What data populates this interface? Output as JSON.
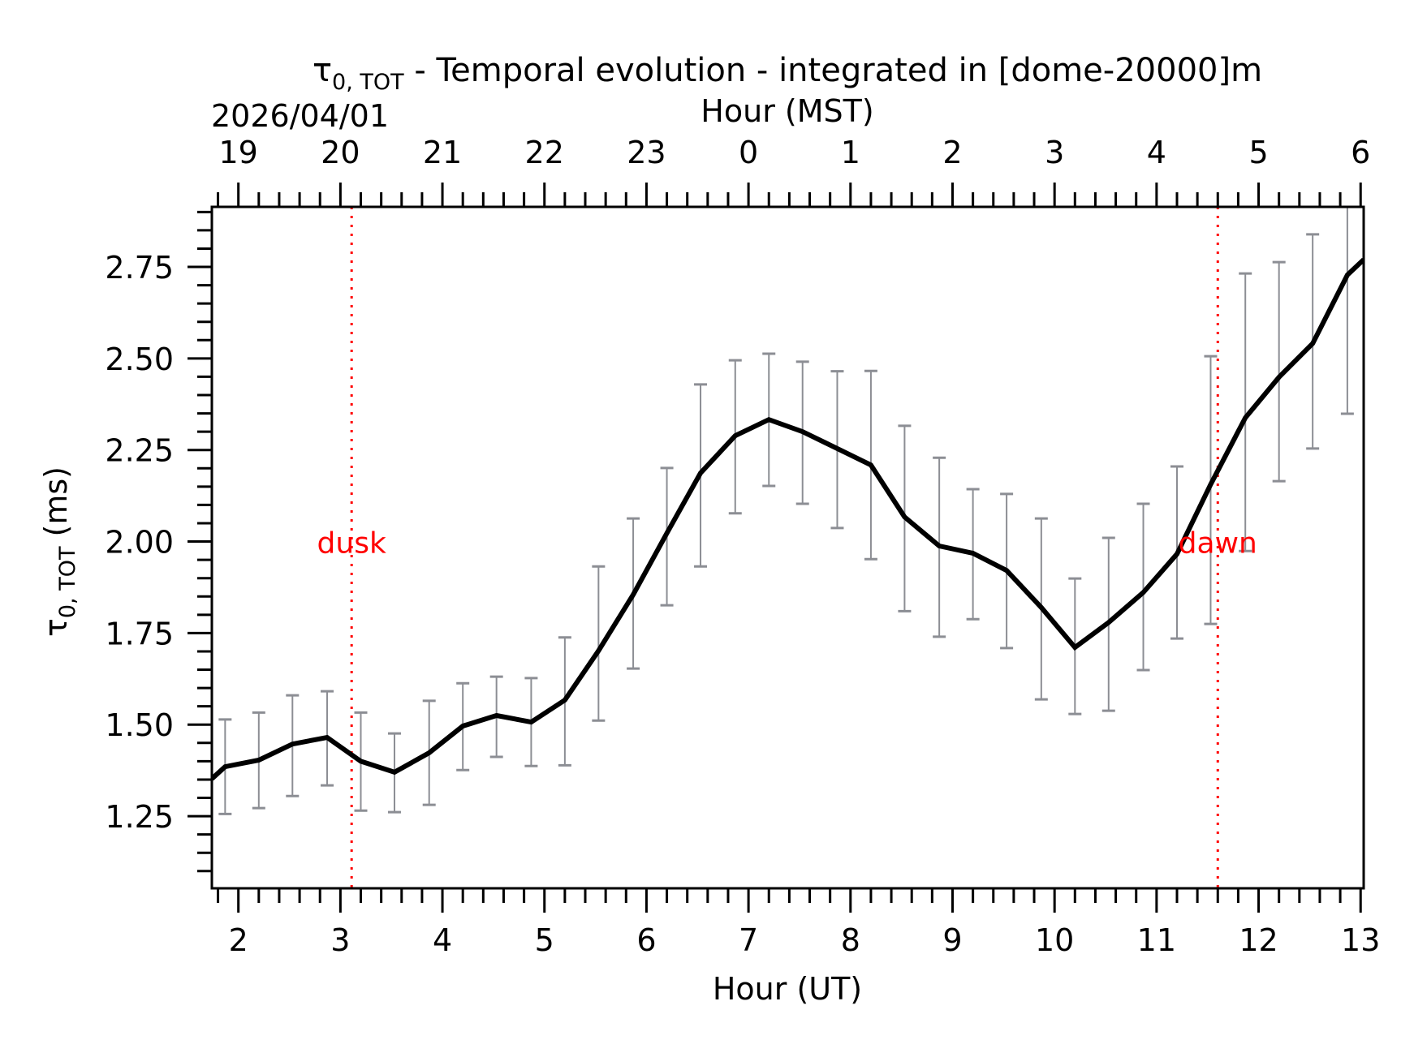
{
  "chart_data": {
    "type": "line",
    "title": {
      "symbol": "τ",
      "subscript": "0, TOT",
      "text": " - Temporal evolution - integrated in [dome-20000]m"
    },
    "date_label": "2026/04/01",
    "xlabel": "Hour (UT)",
    "xlabel_top": "Hour (MST)",
    "ylabel": {
      "symbol": "τ",
      "subscript": "0, TOT",
      "text": " (ms)"
    },
    "xlim": [
      1.74,
      13.03
    ],
    "ylim": [
      1.053,
      2.914
    ],
    "x_ticks": [
      2,
      3,
      4,
      5,
      6,
      7,
      8,
      9,
      10,
      11,
      12,
      13
    ],
    "x_tick_labels": [
      "2",
      "3",
      "4",
      "5",
      "6",
      "7",
      "8",
      "9",
      "10",
      "11",
      "12",
      "13"
    ],
    "x_minor_step": 0.2,
    "top_ticks_ut": [
      2,
      3,
      4,
      5,
      6,
      7,
      8,
      9,
      10,
      11,
      12,
      13
    ],
    "top_tick_labels": [
      "19",
      "20",
      "21",
      "22",
      "23",
      "0",
      "1",
      "2",
      "3",
      "4",
      "5",
      "6"
    ],
    "y_ticks": [
      1.25,
      1.5,
      1.75,
      2.0,
      2.25,
      2.5,
      2.75
    ],
    "y_tick_labels": [
      "1.25",
      "1.50",
      "1.75",
      "2.00",
      "2.25",
      "2.50",
      "2.75"
    ],
    "y_minor_step": 0.05,
    "grid": false,
    "series": [
      {
        "name": "tau0_tot",
        "color": "#000000",
        "x": [
          1.74,
          1.87,
          2.2,
          2.53,
          2.87,
          3.2,
          3.53,
          3.87,
          4.2,
          4.53,
          4.87,
          5.2,
          5.53,
          5.87,
          6.2,
          6.53,
          6.87,
          7.2,
          7.53,
          7.87,
          8.2,
          8.53,
          8.87,
          9.2,
          9.53,
          9.87,
          10.2,
          10.53,
          10.87,
          11.2,
          11.53,
          11.87,
          12.2,
          12.53,
          12.87,
          13.03
        ],
        "y": [
          1.352,
          1.385,
          1.403,
          1.447,
          1.465,
          1.4,
          1.37,
          1.423,
          1.496,
          1.525,
          1.507,
          1.567,
          1.702,
          1.855,
          2.023,
          2.187,
          2.289,
          2.333,
          2.3,
          2.254,
          2.209,
          2.067,
          1.988,
          1.968,
          1.921,
          1.82,
          1.711,
          1.779,
          1.861,
          1.966,
          2.156,
          2.338,
          2.449,
          2.541,
          2.728,
          2.77
        ]
      }
    ],
    "error_bars": {
      "color": "#8c8e94",
      "x": [
        1.87,
        2.2,
        2.53,
        2.87,
        3.2,
        3.53,
        3.87,
        4.2,
        4.53,
        4.87,
        5.2,
        5.53,
        5.87,
        6.2,
        6.53,
        6.87,
        7.2,
        7.53,
        7.87,
        8.2,
        8.53,
        8.87,
        9.2,
        9.53,
        9.87,
        10.2,
        10.53,
        10.87,
        11.2,
        11.53,
        11.87,
        12.2,
        12.53,
        12.87
      ],
      "lower": [
        1.256,
        1.272,
        1.305,
        1.334,
        1.265,
        1.261,
        1.281,
        1.376,
        1.412,
        1.387,
        1.389,
        1.511,
        1.653,
        1.826,
        1.932,
        2.077,
        2.152,
        2.103,
        2.037,
        1.952,
        1.81,
        1.74,
        1.788,
        1.709,
        1.569,
        1.529,
        1.538,
        1.649,
        1.735,
        1.775,
        1.974,
        2.165,
        2.254,
        2.349
      ],
      "upper": [
        1.514,
        1.533,
        1.58,
        1.591,
        1.533,
        1.476,
        1.565,
        1.613,
        1.631,
        1.627,
        1.738,
        1.932,
        2.063,
        2.201,
        2.429,
        2.495,
        2.513,
        2.491,
        2.465,
        2.466,
        2.316,
        2.229,
        2.143,
        2.13,
        2.063,
        1.899,
        2.01,
        2.103,
        2.205,
        2.506,
        2.732,
        2.763,
        2.839,
        2.92
      ]
    },
    "annotations": [
      {
        "label": "dusk",
        "x": 3.11,
        "y": 1.98,
        "color": "#ff0000",
        "line": "vertical-dotted"
      },
      {
        "label": "dawn",
        "x": 11.6,
        "y": 1.98,
        "color": "#ff0000",
        "line": "vertical-dotted"
      }
    ]
  }
}
